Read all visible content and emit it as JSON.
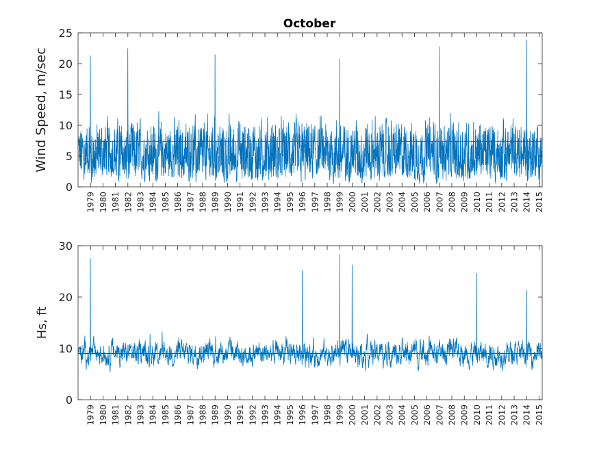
{
  "chart_data": [
    {
      "type": "line",
      "title": "October",
      "xlabel": "",
      "ylabel": "Wind Speed, m/sec",
      "ylim": [
        0,
        25
      ],
      "yticks": [
        "0",
        "5",
        "10",
        "15",
        "20",
        "25"
      ],
      "xticks": [
        "1979",
        "1980",
        "1981",
        "1982",
        "1983",
        "1984",
        "1985",
        "1986",
        "1987",
        "1988",
        "1989",
        "1990",
        "1991",
        "1992",
        "1993",
        "1994",
        "1995",
        "1996",
        "1997",
        "1998",
        "1999",
        "2000",
        "2001",
        "2002",
        "2003",
        "2004",
        "2005",
        "2006",
        "2007",
        "2008",
        "2009",
        "2010",
        "2011",
        "2012",
        "2013",
        "2014",
        "2015"
      ],
      "grid": false,
      "series_color": "#0072bd",
      "mean_line": {
        "value": 7.4,
        "color": "#ff0000"
      },
      "notable_peaks": [
        {
          "year": 1979,
          "value": 21.3
        },
        {
          "year": 1982,
          "value": 22.5
        },
        {
          "year": 1989,
          "value": 21.5
        },
        {
          "year": 1999,
          "value": 20.8
        },
        {
          "year": 2007,
          "value": 22.8
        },
        {
          "year": 2014,
          "value": 23.9
        }
      ],
      "series": [
        {
          "values_summary": "daily series of October wind speeds from 1979 to 2015, oscillating between approx. 0 and 20 m/sec"
        }
      ]
    },
    {
      "type": "line",
      "title": "",
      "xlabel": "",
      "ylabel": "Hs, ft",
      "ylim": [
        0,
        30
      ],
      "yticks": [
        "0",
        "10",
        "20",
        "30"
      ],
      "xticks": [
        "1979",
        "1980",
        "1981",
        "1982",
        "1983",
        "1984",
        "1985",
        "1986",
        "1987",
        "1988",
        "1989",
        "1990",
        "1991",
        "1992",
        "1993",
        "1994",
        "1995",
        "1996",
        "1997",
        "1998",
        "1999",
        "2000",
        "2001",
        "2002",
        "2003",
        "2004",
        "2005",
        "2006",
        "2007",
        "2008",
        "2009",
        "2010",
        "2011",
        "2012",
        "2013",
        "2014",
        "2015"
      ],
      "grid": false,
      "series_color": "#0072bd",
      "mean_line": {
        "value": 9.0,
        "color": "#ff0000"
      },
      "notable_peaks": [
        {
          "year": 1979,
          "value": 27.5
        },
        {
          "year": 1996,
          "value": 25.2
        },
        {
          "year": 1999,
          "value": 28.4
        },
        {
          "year": 2000,
          "value": 26.3
        },
        {
          "year": 2010,
          "value": 24.7
        },
        {
          "year": 2014,
          "value": 21.3
        }
      ],
      "series": [
        {
          "values_summary": "significant wave height in October from 1979 to 2015, mostly between approx. 4 and 15 ft"
        }
      ]
    }
  ]
}
